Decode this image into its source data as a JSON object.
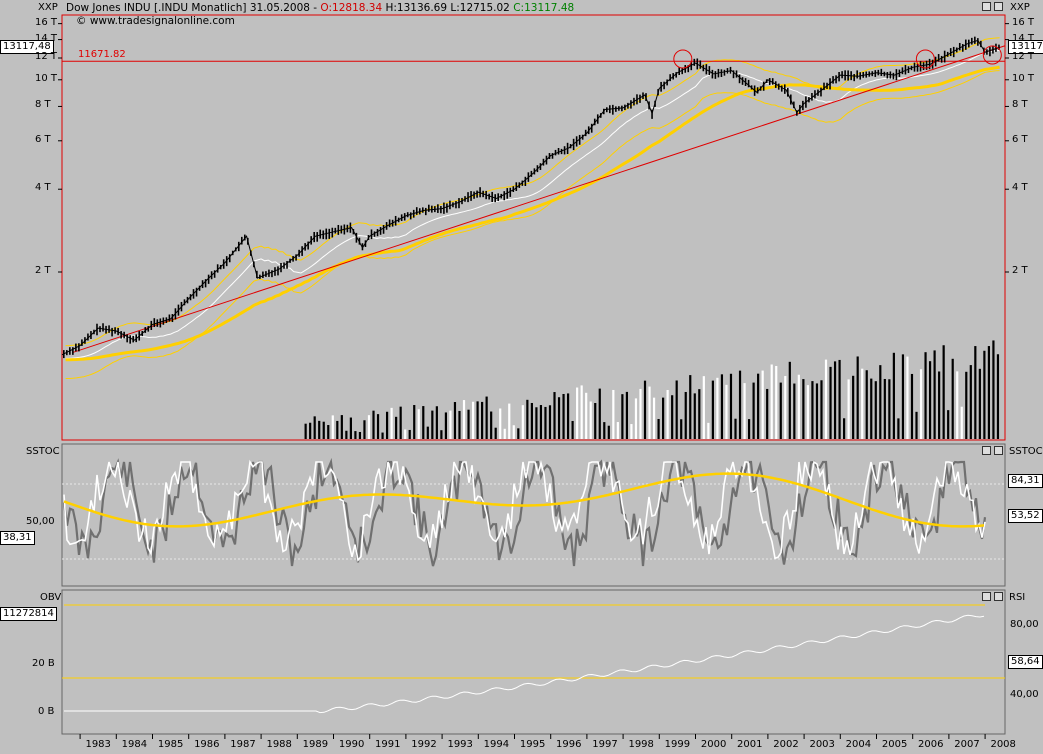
{
  "header": {
    "instrument": "Dow Jones INDU [.INDU Monatlich]",
    "date": "31.05.2008",
    "open": "O:12818.34",
    "high": "H:13136.69",
    "low": "L:12715.02",
    "close": "C:13117.48",
    "source": "© www.tradesignalonline.com"
  },
  "colors": {
    "up_bar": "#000000",
    "ma_gold": "#ffd000",
    "trend_red": "#e00000",
    "stoch_grey": "#707070",
    "band_white": "#ffffff",
    "panel_bg": "#c0c0c0"
  },
  "main_panel": {
    "indicator_left": "XXP",
    "indicator_right": "XXP",
    "y_ticks": [
      "16 T",
      "14 T",
      "12 T",
      "10 T",
      "8 T",
      "6 T",
      "4 T",
      "2 T"
    ],
    "y_ticks_right": [
      "16 T",
      "14 T",
      "12 T",
      "10 T",
      "8 T",
      "6 T",
      "4 T",
      "2 T"
    ],
    "last_value_left": "13117,48",
    "last_value_right": "13117",
    "resistance_label": "11671.82",
    "resistance_value": 11671.82
  },
  "sstoc_panel": {
    "label_left": "SSTOC",
    "label_right": "SSTOC",
    "tick_left": "50,00",
    "last_left": "38,31",
    "val_right_1": "84,31",
    "val_right_2": "53,52"
  },
  "obv_panel": {
    "label_left": "OBV",
    "label_right": "RSI",
    "last_left": "11272814",
    "ticks_left": [
      "20 B",
      "0 B"
    ],
    "ticks_right": [
      "80,00",
      "40,00"
    ],
    "last_right": "58,64"
  },
  "x_axis": {
    "years": [
      "1983",
      "1984",
      "1985",
      "1986",
      "1987",
      "1988",
      "1989",
      "1990",
      "1991",
      "1992",
      "1993",
      "1994",
      "1995",
      "1996",
      "1997",
      "1998",
      "1999",
      "2000",
      "2001",
      "2002",
      "2003",
      "2004",
      "2005",
      "2006",
      "2007",
      "2008"
    ]
  },
  "chart_data": {
    "type": "line",
    "title": "Dow Jones INDU [.INDU Monatlich]",
    "xlabel": "",
    "ylabel": "",
    "scale": "log",
    "ylim": [
      1000,
      17000
    ],
    "series": [
      {
        "name": "Dow Jones INDU",
        "x": [
          1982.5,
          1983.0,
          1983.5,
          1984.0,
          1984.5,
          1985.0,
          1985.5,
          1986.0,
          1986.5,
          1987.0,
          1987.6,
          1987.9,
          1988.5,
          1989.0,
          1989.5,
          1990.0,
          1990.5,
          1990.8,
          1991.0,
          1991.5,
          1992.0,
          1992.5,
          1993.0,
          1993.5,
          1994.0,
          1994.5,
          1995.0,
          1995.5,
          1996.0,
          1996.5,
          1997.0,
          1997.5,
          1998.0,
          1998.6,
          1998.8,
          1999.0,
          1999.5,
          2000.0,
          2000.5,
          2001.0,
          2001.7,
          2002.0,
          2002.5,
          2002.8,
          2003.0,
          2003.5,
          2004.0,
          2004.5,
          2005.0,
          2005.5,
          2006.0,
          2006.5,
          2007.0,
          2007.5,
          2007.8,
          2008.0,
          2008.4
        ],
        "values": [
          1000,
          1080,
          1250,
          1220,
          1130,
          1290,
          1350,
          1600,
          1870,
          2160,
          2700,
          1900,
          2050,
          2300,
          2700,
          2800,
          2900,
          2450,
          2700,
          2950,
          3200,
          3350,
          3400,
          3600,
          3900,
          3700,
          4000,
          4550,
          5300,
          5650,
          6400,
          7800,
          7900,
          8800,
          7550,
          9300,
          10600,
          11500,
          10500,
          10800,
          9000,
          10000,
          9200,
          7600,
          8200,
          9200,
          10400,
          10300,
          10600,
          10400,
          11100,
          11400,
          12400,
          13500,
          13900,
          12600,
          13117
        ]
      },
      {
        "name": "",
        "x": [
          1982.5,
          2008.4
        ],
        "values": [
          11671.82,
          11671.82
        ]
      }
    ]
  }
}
